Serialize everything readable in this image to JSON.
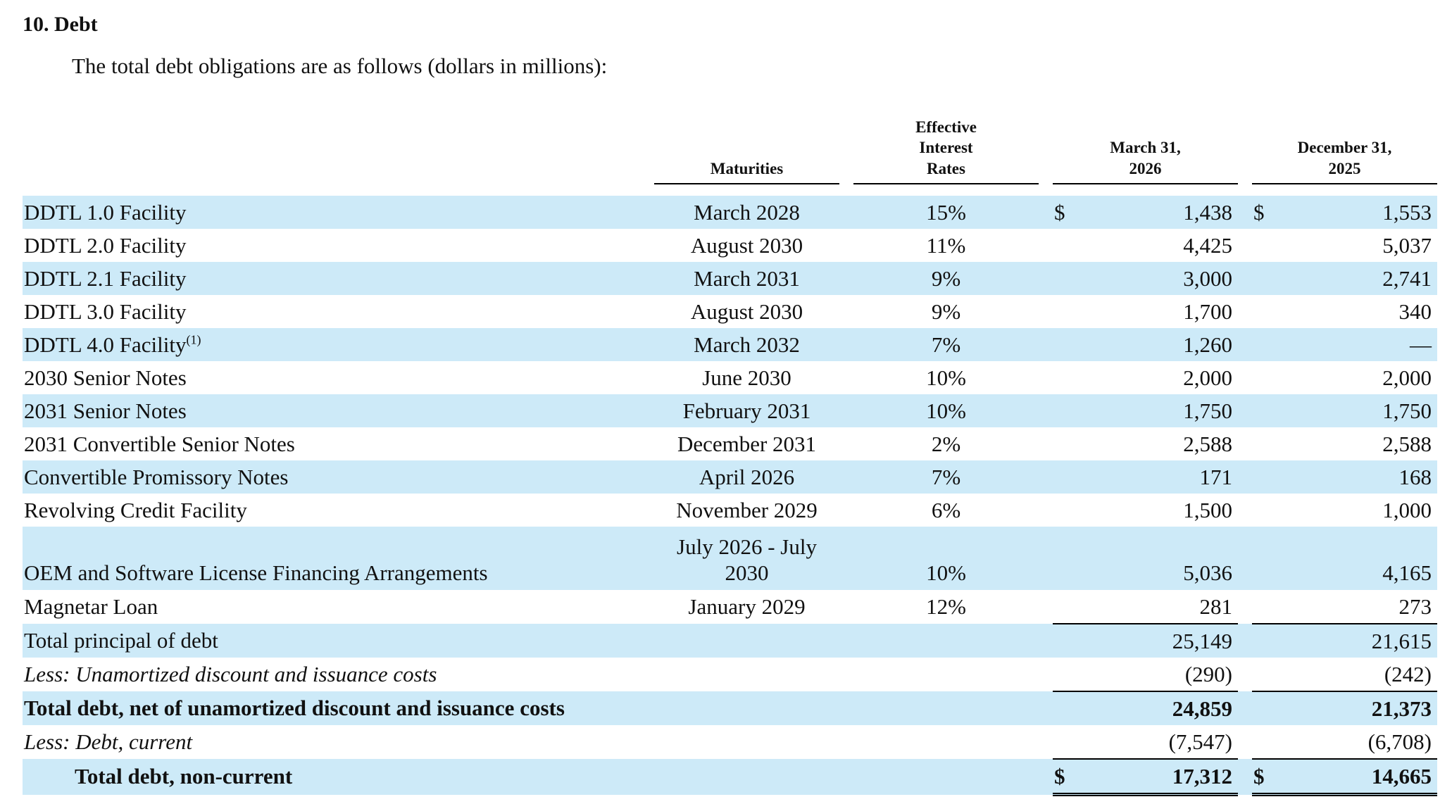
{
  "section": {
    "heading": "10. Debt",
    "intro": "The total debt obligations are as follows (dollars in millions):"
  },
  "table": {
    "headers": {
      "maturities": "Maturities",
      "rates": "Effective Interest Rates",
      "col1": "March 31, 2026",
      "col2": "December 31, 2025"
    },
    "rows": [
      {
        "label": "DDTL 1.0 Facility",
        "footnote": "",
        "maturity": "March 2028",
        "rate": "15%",
        "cur1": "$",
        "v1": "1,438",
        "cur2": "$",
        "v2": "1,553"
      },
      {
        "label": "DDTL 2.0 Facility",
        "footnote": "",
        "maturity": "August 2030",
        "rate": "11%",
        "cur1": "",
        "v1": "4,425",
        "cur2": "",
        "v2": "5,037"
      },
      {
        "label": "DDTL 2.1 Facility",
        "footnote": "",
        "maturity": "March 2031",
        "rate": "9%",
        "cur1": "",
        "v1": "3,000",
        "cur2": "",
        "v2": "2,741"
      },
      {
        "label": "DDTL 3.0 Facility",
        "footnote": "",
        "maturity": "August 2030",
        "rate": "9%",
        "cur1": "",
        "v1": "1,700",
        "cur2": "",
        "v2": "340"
      },
      {
        "label": "DDTL 4.0 Facility",
        "footnote": "(1)",
        "maturity": "March 2032",
        "rate": "7%",
        "cur1": "",
        "v1": "1,260",
        "cur2": "",
        "v2": "—"
      },
      {
        "label": "2030 Senior Notes",
        "footnote": "",
        "maturity": "June 2030",
        "rate": "10%",
        "cur1": "",
        "v1": "2,000",
        "cur2": "",
        "v2": "2,000"
      },
      {
        "label": "2031 Senior Notes",
        "footnote": "",
        "maturity": "February 2031",
        "rate": "10%",
        "cur1": "",
        "v1": "1,750",
        "cur2": "",
        "v2": "1,750"
      },
      {
        "label": "2031 Convertible Senior Notes",
        "footnote": "",
        "maturity": "December 2031",
        "rate": "2%",
        "cur1": "",
        "v1": "2,588",
        "cur2": "",
        "v2": "2,588"
      },
      {
        "label": "Convertible Promissory Notes",
        "footnote": "",
        "maturity": "April 2026",
        "rate": "7%",
        "cur1": "",
        "v1": "171",
        "cur2": "",
        "v2": "168"
      },
      {
        "label": "Revolving Credit Facility",
        "footnote": "",
        "maturity": "November 2029",
        "rate": "6%",
        "cur1": "",
        "v1": "1,500",
        "cur2": "",
        "v2": "1,000"
      },
      {
        "label": "OEM and Software License Financing Arrangements",
        "footnote": "",
        "maturity": "July 2026 - July 2030",
        "rate": "10%",
        "cur1": "",
        "v1": "5,036",
        "cur2": "",
        "v2": "4,165"
      },
      {
        "label": "Magnetar Loan",
        "footnote": "",
        "maturity": "January 2029",
        "rate": "12%",
        "cur1": "",
        "v1": "281",
        "cur2": "",
        "v2": "273"
      }
    ],
    "summary": [
      {
        "label": "Total principal of debt",
        "cur1": "",
        "v1": "25,149",
        "cur2": "",
        "v2": "21,615"
      },
      {
        "label": "Less: Unamortized discount and issuance costs",
        "cur1": "",
        "v1": "(290)",
        "cur2": "",
        "v2": "(242)"
      },
      {
        "label": "Total debt, net of unamortized discount and issuance costs",
        "cur1": "",
        "v1": "24,859",
        "cur2": "",
        "v2": "21,373"
      },
      {
        "label": "Less: Debt, current",
        "cur1": "",
        "v1": "(7,547)",
        "cur2": "",
        "v2": "(6,708)"
      },
      {
        "label": "Total debt, non-current",
        "cur1": "$",
        "v1": "17,312",
        "cur2": "$",
        "v2": "14,665"
      }
    ]
  }
}
